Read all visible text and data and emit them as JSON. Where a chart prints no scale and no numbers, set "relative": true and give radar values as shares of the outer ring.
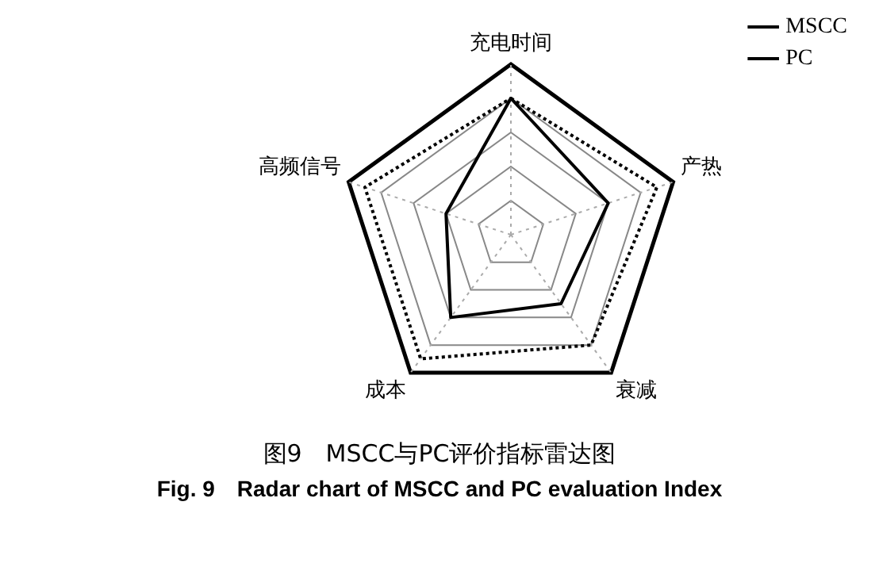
{
  "chart_data": {
    "type": "radar",
    "title": "图9　MSCC与PC评价指标雷达图",
    "subtitle": "Fig. 9　Radar chart of MSCC and PC evaluation Index",
    "categories": [
      "充电时间",
      "产热",
      "衰减",
      "成本",
      "高频信号"
    ],
    "relative": true,
    "grid": true,
    "legend": "top right",
    "marker": "none",
    "series": [
      {
        "name": "MSCC",
        "color": "#000000",
        "line_style": "solid",
        "values": [
          0.8,
          0.6,
          0.5,
          0.6,
          0.4
        ]
      },
      {
        "name": "PC",
        "color": "#000000",
        "line_style": "dotted",
        "values": [
          0.8,
          0.9,
          0.8,
          0.9,
          0.9
        ]
      }
    ]
  }
}
